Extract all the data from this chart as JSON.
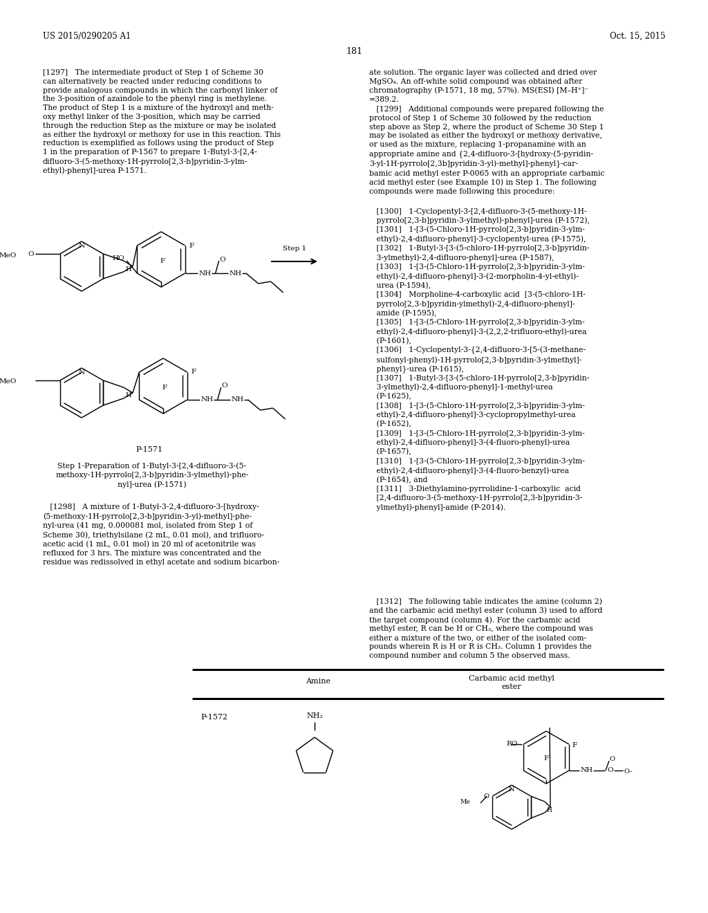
{
  "background_color": "#ffffff",
  "patent_num": "US 2015/0290205 A1",
  "patent_date": "Oct. 15, 2015",
  "page_num": "181",
  "para1297": "[1297]   The intermediate product of Step 1 of Scheme 30\ncan alternatively be reacted under reducing conditions to\nprovide analogous compounds in which the carbonyl linker of\nthe 3-position of azaindole to the phenyl ring is methylene.\nThe product of Step 1 is a mixture of the hydroxyl and meth-\noxy methyl linker of the 3-position, which may be carried\nthrough the reduction Step as the mixture or may be isolated\nas either the hydroxyl or methoxy for use in this reaction. This\nreduction is exemplified as follows using the product of Step\n1 in the preparation of P-1567 to prepare 1-Butyl-3-[2,4-\ndifluoro-3-(5-methoxy-1H-pyrrolo[2,3-b]pyridin-3-ylm-\nethyl)-phenyl]-urea P-1571.",
  "para1298_right_top": "ate solution. The organic layer was collected and dried over\nMgSO₄. An off-white solid compound was obtained after\nchromatography (P-1571, 18 mg, 57%). MS(ESI) [M–H⁺]⁻\n=389.2.",
  "para1299": "   [1299]   Additional compounds were prepared following the\nprotocol of Step 1 of Scheme 30 followed by the reduction\nstep above as Step 2, where the product of Scheme 30 Step 1\nmay be isolated as either the hydroxyl or methoxy derivative,\nor used as the mixture, replacing 1-propanamine with an\nappropriate amine and {2,4-difluoro-3-[hydroxy-(5-pyridin-\n3-yl-1H-pyrrolo[2,3b]pyridin-3-yl)-methyl]-phenyl}-car-\nbamic acid methyl ester P-0065 with an appropriate carbamic\nacid methyl ester (see Example 10) in Step 1. The following\ncompounds were made following this procedure:",
  "compounds": [
    "   [1300]   1-Cyclopentyl-3-[2,4-difluoro-3-(5-methoxy-1H-\n   pyrrolo[2,3-b]pyridin-3-ylmethyl)-phenyl]-urea (P-1572),",
    "   [1301]   1-[3-(5-Chloro-1H-pyrrolo[2,3-b]pyridin-3-ylm-\n   ethyl)-2,4-difluoro-phenyl]-3-cyclopentyl-urea (P-1575),",
    "   [1302]   1-Butyl-3-[3-(5-chloro-1H-pyrrolo[2,3-b]pyridin-\n   3-ylmethyl)-2,4-difluoro-phenyl]-urea (P-1587),",
    "   [1303]   1-[3-(5-Chloro-1H-pyrrolo[2,3-b]pyridin-3-ylm-\n   ethyl)-2,4-difluoro-phenyl]-3-(2-morpholin-4-yl-ethyl)-\n   urea (P-1594),",
    "   [1304]   Morpholine-4-carboxylic acid  [3-(5-chloro-1H-\n   pyrrolo[2,3-b]pyridin-ylmethyl)-2,4-difluoro-phenyl]-\n   amide (P-1595),",
    "   [1305]   1-[3-(5-Chloro-1H-pyrrolo[2,3-b]pyridin-3-ylm-\n   ethyl)-2,4-difluoro-phenyl]-3-(2,2,2-trifluoro-ethyl)-urea\n   (P-1601),",
    "   [1306]   1-Cyclopentyl-3-{2,4-difluoro-3-[5-(3-methane-\n   sulfonyl-phenyl)-1H-pyrrolo[2,3-b]pyridin-3-ylmethyl]-\n   phenyl}-urea (P-1615),",
    "   [1307]   1-Butyl-3-[3-(5-chloro-1H-pyrrolo[2,3-b]pyridin-\n   3-ylmethyl)-2,4-difluoro-phenyl]-1-methyl-urea\n   (P-1625),",
    "   [1308]   1-[3-(5-Chloro-1H-pyrrolo[2,3-b]pyridin-3-ylm-\n   ethyl)-2,4-difluoro-phenyl]-3-cyclopropylmethyl-urea\n   (P-1652),",
    "   [1309]   1-[3-(5-Chloro-1H-pyrrolo[2,3-b]pyridin-3-ylm-\n   ethyl)-2,4-difluoro-phenyl]-3-(4-fluoro-phenyl)-urea\n   (P-1657),",
    "   [1310]   1-[3-(5-Chloro-1H-pyrrolo[2,3-b]pyridin-3-ylm-\n   ethyl)-2,4-difluoro-phenyl]-3-(4-fluoro-benzyl)-urea\n   (P-1654), and",
    "   [1311]   3-Diethylamino-pyrrolidine-1-carboxylic  acid\n   [2,4-difluoro-3-(5-methoxy-1H-pyrrolo[2,3-b]pyridin-3-\n   ylmethyl)-phenyl]-amide (P-2014)."
  ],
  "para1298_left": "   [1298]   A mixture of 1-Butyl-3-2,4-difluoro-3-[hydroxy-\n(5-methoxy-1H-pyrrolo[2,3-b]pyridin-3-yl)-methyl]-phe-\nnyl-urea (41 mg, 0.000081 mol, isolated from Step 1 of\nScheme 30), triethylsilane (2 mL, 0.01 mol), and trifluoro-\nacetic acid (1 mL, 0.01 mol) in 20 ml of acetonitrile was\nrefluxed for 3 hrs. The mixture was concentrated and the\nresidue was redissolved in ethyl acetate and sodium bicarbon-",
  "para1312": "   [1312]   The following table indicates the amine (column 2)\nand the carbamic acid methyl ester (column 3) used to afford\nthe target compound (column 4). For the carbamic acid\nmethyl ester, R can be H or CH₃, where the compound was\neither a mixture of the two, or either of the isolated com-\npounds wherein R is H or R is CH₃. Column 1 provides the\ncompound number and column 5 the observed mass.",
  "step1_label": "Step 1",
  "p1571_label": "P-1571",
  "step1_caption": "Step 1-Preparation of 1-Butyl-3-[2,4-difluoro-3-(5-\nmethoxy-1H-pyrrolo[2,3-b]pyridin-3-ylmethyl)-phe-\nnyl]-urea (P-1571)",
  "table_col2_header": "Amine",
  "table_col3_header": "Carbamic acid methyl\nester",
  "table_row1": "P-1572"
}
